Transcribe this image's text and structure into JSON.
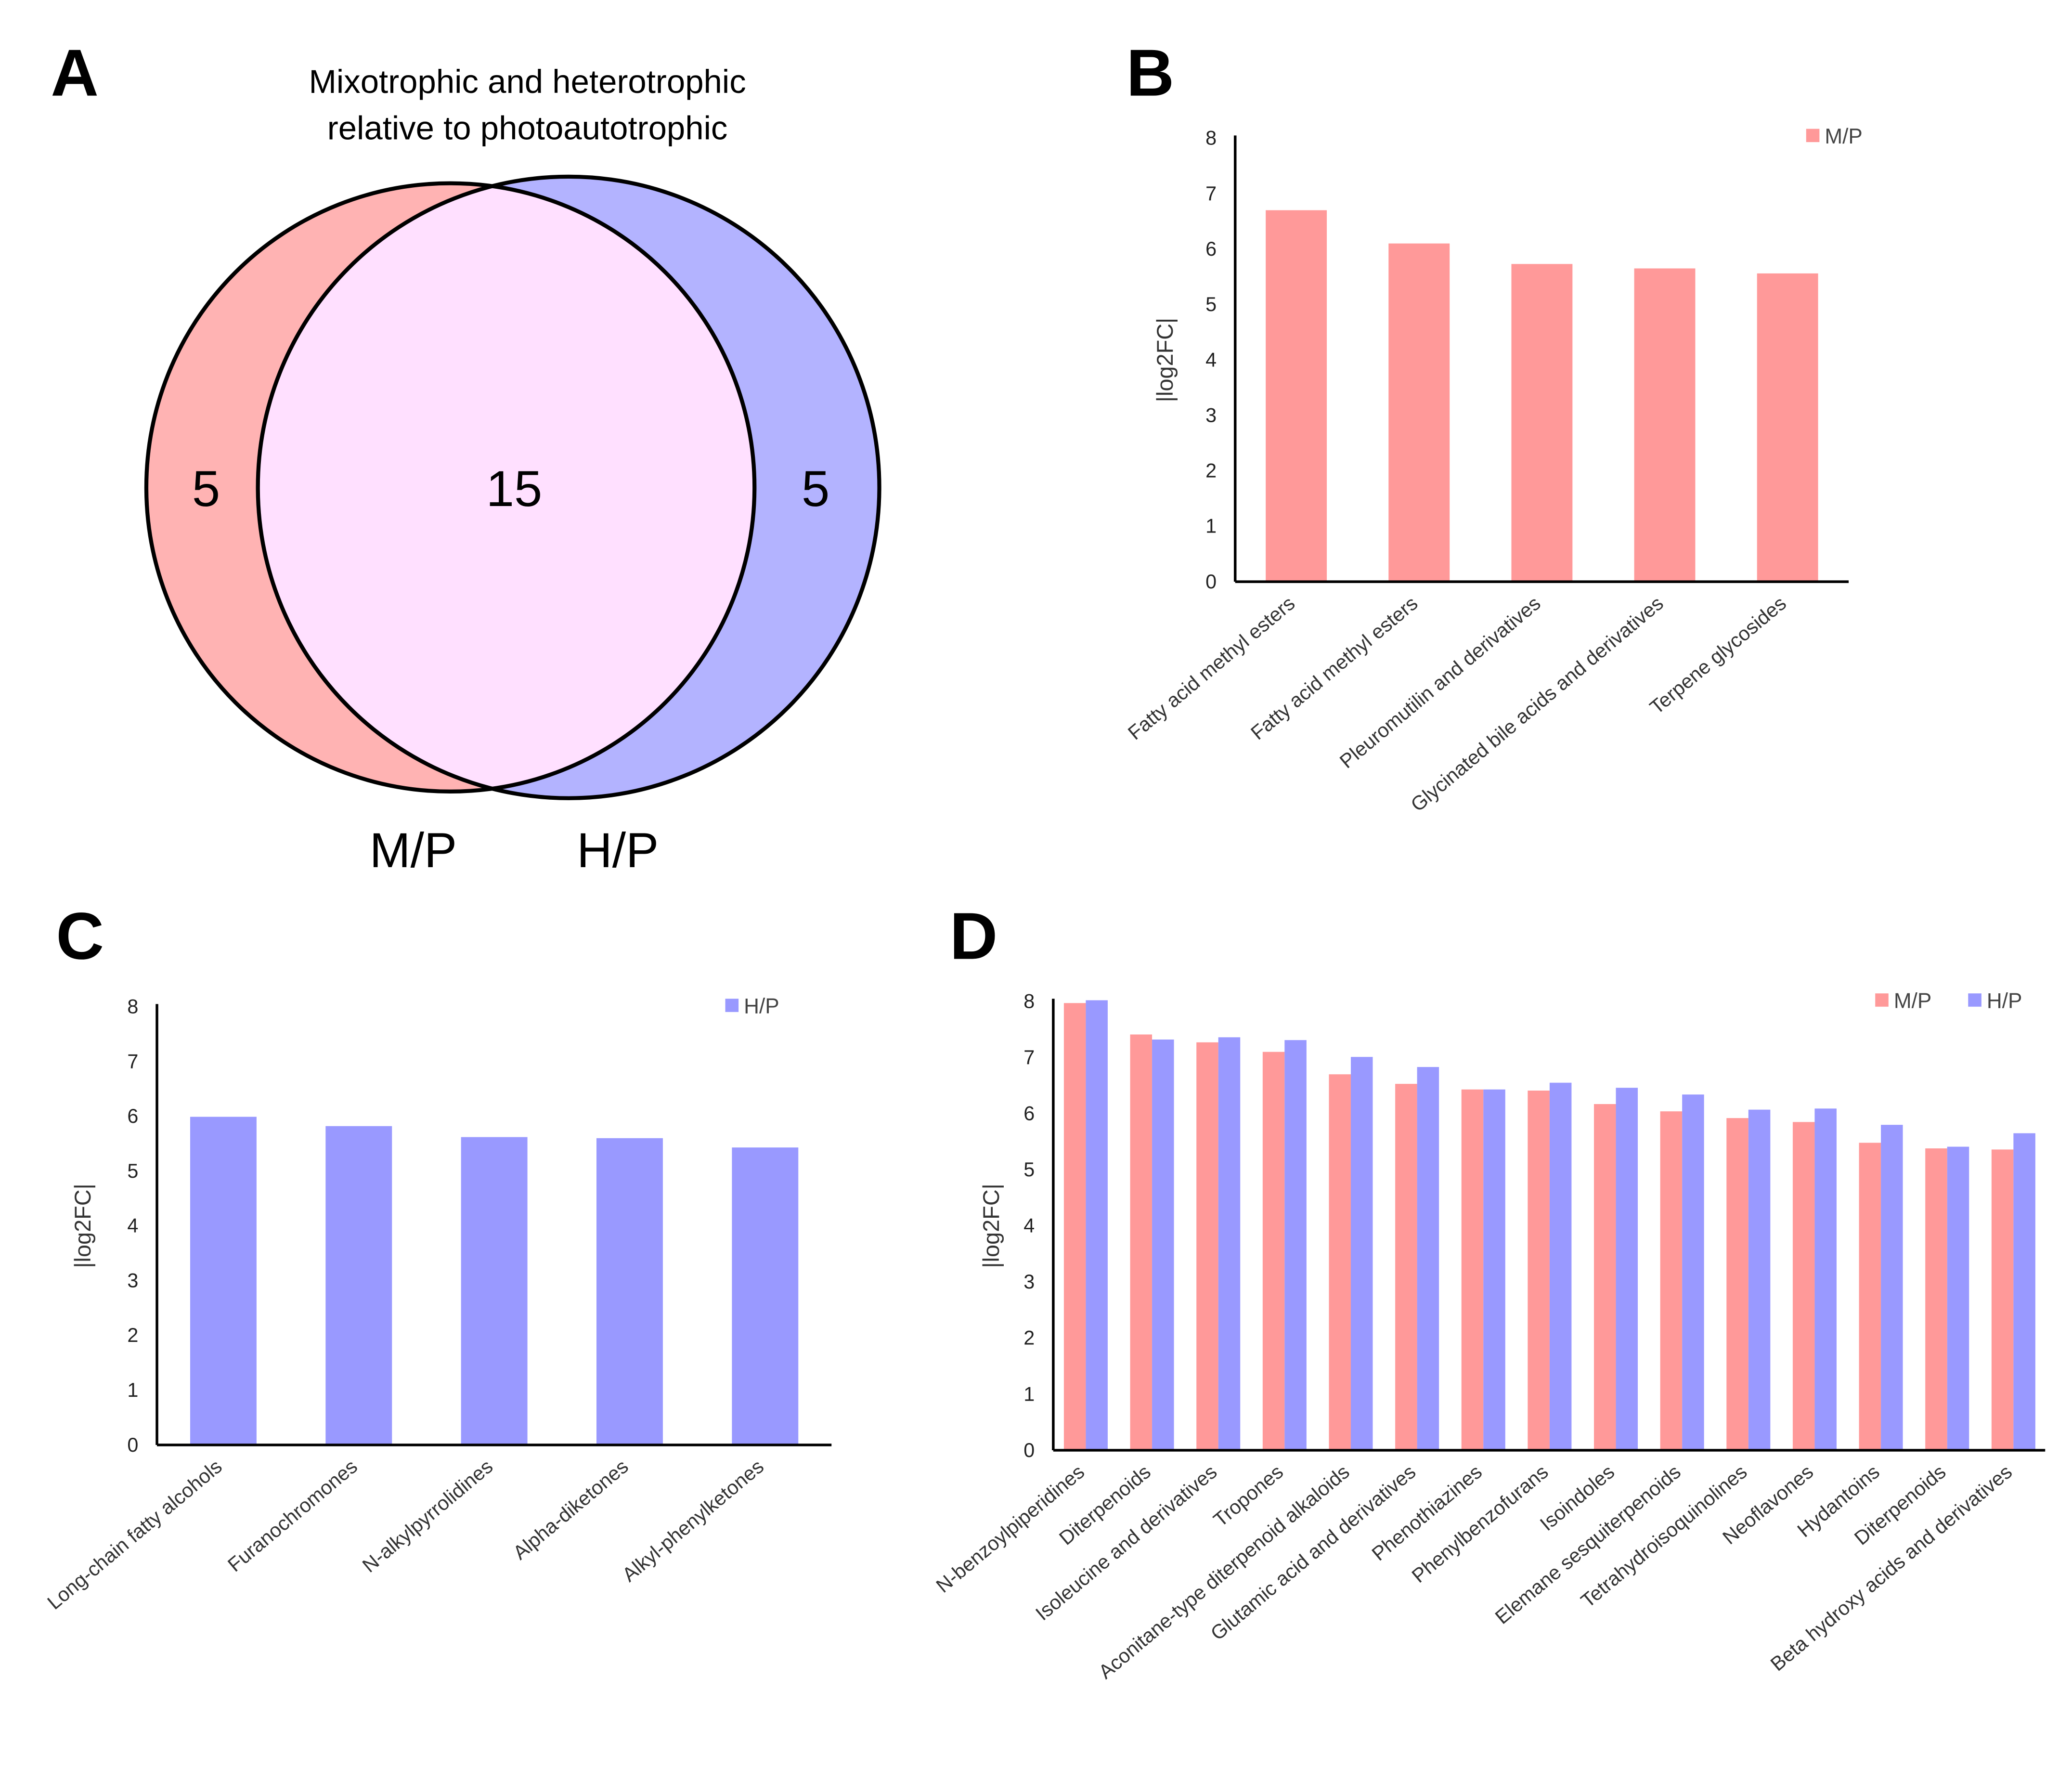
{
  "panels": {
    "a": "A",
    "b": "B",
    "c": "C",
    "d": "D"
  },
  "colors": {
    "mp": "#ff9999",
    "hp": "#9999ff",
    "mp_venn": "#ffb3b3",
    "hp_venn": "#b3b3ff",
    "overlap": "#ffe0ff"
  },
  "venn": {
    "title_line1": "Mixotrophic and heterotrophic",
    "title_line2": "relative to photoautotrophic",
    "left_only": "5",
    "overlap": "15",
    "right_only": "5",
    "left_label": "M/P",
    "right_label": "H/P"
  },
  "chart_data": [
    {
      "id": "B",
      "type": "bar",
      "ylabel": "|log2FC|",
      "ylim": [
        0,
        8
      ],
      "yticks": [
        0,
        1,
        2,
        3,
        4,
        5,
        6,
        7,
        8
      ],
      "legend": "top-right",
      "categories": [
        "Fatty acid methyl esters",
        "Fatty acid methyl esters",
        "Pleuromutilin and derivatives",
        "Glycinated bile acids and derivatives",
        "Terpene glycosides"
      ],
      "series": [
        {
          "name": "M/P",
          "color": "#ff9999",
          "values": [
            6.7,
            6.1,
            5.73,
            5.65,
            5.56
          ]
        }
      ]
    },
    {
      "id": "C",
      "type": "bar",
      "ylabel": "|log2FC|",
      "ylim": [
        0,
        8
      ],
      "yticks": [
        0,
        1,
        2,
        3,
        4,
        5,
        6,
        7,
        8
      ],
      "legend": "top-right",
      "categories": [
        "Long-chain fatty alcohols",
        "Furanochromones",
        "N-alkylpyrrolidines",
        "Alpha-diketones",
        "Alkyl-phenylketones"
      ],
      "series": [
        {
          "name": "H/P",
          "color": "#9999ff",
          "values": [
            5.99,
            5.82,
            5.62,
            5.6,
            5.43
          ]
        }
      ]
    },
    {
      "id": "D",
      "type": "bar",
      "ylabel": "|log2FC|",
      "ylim": [
        0,
        8
      ],
      "yticks": [
        0,
        1,
        2,
        3,
        4,
        5,
        6,
        7,
        8
      ],
      "legend": "top-right",
      "categories": [
        "N-benzoylpiperidines",
        "Diterpenoids",
        "Isoleucine and derivatives",
        "Tropones",
        "Aconitane-type diterpenoid alkaloids",
        "Glutamic acid and derivatives",
        "Phenothiazines",
        "Phenylbenzofurans",
        "Isoindoles",
        "Elemane sesquiterpenoids",
        "Tetrahydroisoquinolines",
        "Neoflavones",
        "Hydantoins",
        "Diterpenoids",
        "Beta hydroxy acids and derivatives"
      ],
      "series": [
        {
          "name": "M/P",
          "color": "#ff9999",
          "values": [
            7.97,
            7.41,
            7.27,
            7.1,
            6.7,
            6.53,
            6.43,
            6.41,
            6.17,
            6.04,
            5.92,
            5.85,
            5.48,
            5.38,
            5.36
          ]
        },
        {
          "name": "H/P",
          "color": "#9999ff",
          "values": [
            8.02,
            7.32,
            7.36,
            7.31,
            7.01,
            6.83,
            6.43,
            6.55,
            6.46,
            6.34,
            6.07,
            6.09,
            5.8,
            5.41,
            5.65
          ]
        }
      ]
    }
  ]
}
